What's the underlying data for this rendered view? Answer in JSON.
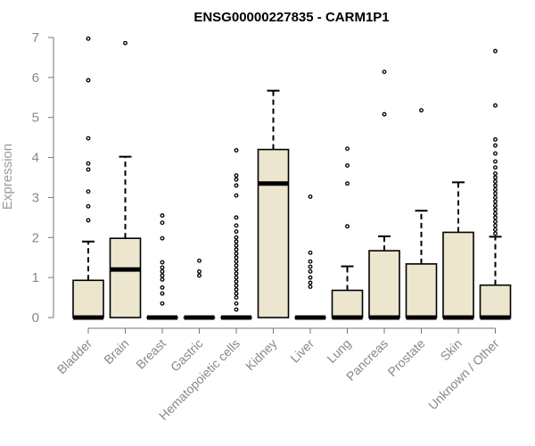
{
  "chart_data": {
    "type": "boxplot",
    "title": "ENSG00000227835 - CARM1P1",
    "xlabel": "",
    "ylabel": "Expression",
    "ylim": [
      0,
      7
    ],
    "yticks": [
      0,
      1,
      2,
      3,
      4,
      5,
      6,
      7
    ],
    "grid": false,
    "colors": {
      "box_fill": "#ece6cf",
      "box_stroke": "#000000",
      "axis": "#777777",
      "title": "#000000"
    },
    "categories": [
      "Bladder",
      "Brain",
      "Breast",
      "Gastric",
      "Hematopoietic cells",
      "Kidney",
      "Liver",
      "Lung",
      "Pancreas",
      "Prostate",
      "Skin",
      "Unknown / Other"
    ],
    "series": [
      {
        "name": "Bladder",
        "whisker_low": 0,
        "q1": 0,
        "median": 0,
        "q3": 0.93,
        "whisker_high": 1.9,
        "outliers": [
          2.43,
          2.78,
          3.15,
          3.7,
          3.85,
          4.48,
          5.93,
          6.97
        ]
      },
      {
        "name": "Brain",
        "whisker_low": 0,
        "q1": 0,
        "median": 1.2,
        "q3": 1.98,
        "whisker_high": 4.02,
        "outliers": [
          6.86
        ]
      },
      {
        "name": "Breast",
        "whisker_low": 0,
        "q1": 0,
        "median": 0,
        "q3": 0,
        "whisker_high": 0,
        "outliers": [
          0.35,
          0.6,
          0.75,
          0.95,
          1.05,
          1.15,
          1.25,
          1.38,
          1.98,
          2.37,
          2.55
        ]
      },
      {
        "name": "Gastric",
        "whisker_low": 0,
        "q1": 0,
        "median": 0,
        "q3": 0,
        "whisker_high": 0,
        "outliers": [
          1.05,
          1.15,
          1.42
        ]
      },
      {
        "name": "Hematopoietic cells",
        "whisker_low": 0,
        "q1": 0,
        "median": 0,
        "q3": 0,
        "whisker_high": 0,
        "outliers": [
          0.2,
          0.35,
          0.5,
          0.6,
          0.7,
          0.8,
          0.9,
          1.0,
          1.1,
          1.2,
          1.3,
          1.4,
          1.5,
          1.6,
          1.7,
          1.8,
          1.9,
          2.0,
          2.15,
          2.3,
          2.5,
          3.05,
          3.3,
          3.45,
          3.55,
          4.18
        ]
      },
      {
        "name": "Kidney",
        "whisker_low": 0,
        "q1": 0,
        "median": 3.35,
        "q3": 4.2,
        "whisker_high": 5.67,
        "outliers": []
      },
      {
        "name": "Liver",
        "whisker_low": 0,
        "q1": 0,
        "median": 0,
        "q3": 0,
        "whisker_high": 0,
        "outliers": [
          0.77,
          0.87,
          1.0,
          1.15,
          1.27,
          1.4,
          1.62,
          3.02
        ]
      },
      {
        "name": "Lung",
        "whisker_low": 0,
        "q1": 0,
        "median": 0,
        "q3": 0.68,
        "whisker_high": 1.28,
        "outliers": [
          2.28,
          3.35,
          3.8,
          4.22
        ]
      },
      {
        "name": "Pancreas",
        "whisker_low": 0,
        "q1": 0,
        "median": 0,
        "q3": 1.67,
        "whisker_high": 2.03,
        "outliers": [
          5.08,
          6.14
        ]
      },
      {
        "name": "Prostate",
        "whisker_low": 0,
        "q1": 0,
        "median": 0,
        "q3": 1.34,
        "whisker_high": 2.67,
        "outliers": [
          5.18
        ]
      },
      {
        "name": "Skin",
        "whisker_low": 0,
        "q1": 0,
        "median": 0,
        "q3": 2.13,
        "whisker_high": 3.38,
        "outliers": []
      },
      {
        "name": "Unknown / Other",
        "whisker_low": 0,
        "q1": 0,
        "median": 0,
        "q3": 0.81,
        "whisker_high": 2.02,
        "outliers": [
          2.1,
          2.2,
          2.3,
          2.4,
          2.5,
          2.6,
          2.7,
          2.8,
          2.9,
          3.0,
          3.1,
          3.2,
          3.3,
          3.4,
          3.5,
          3.6,
          3.75,
          3.9,
          4.1,
          4.3,
          4.45,
          5.3,
          6.66
        ]
      }
    ]
  }
}
